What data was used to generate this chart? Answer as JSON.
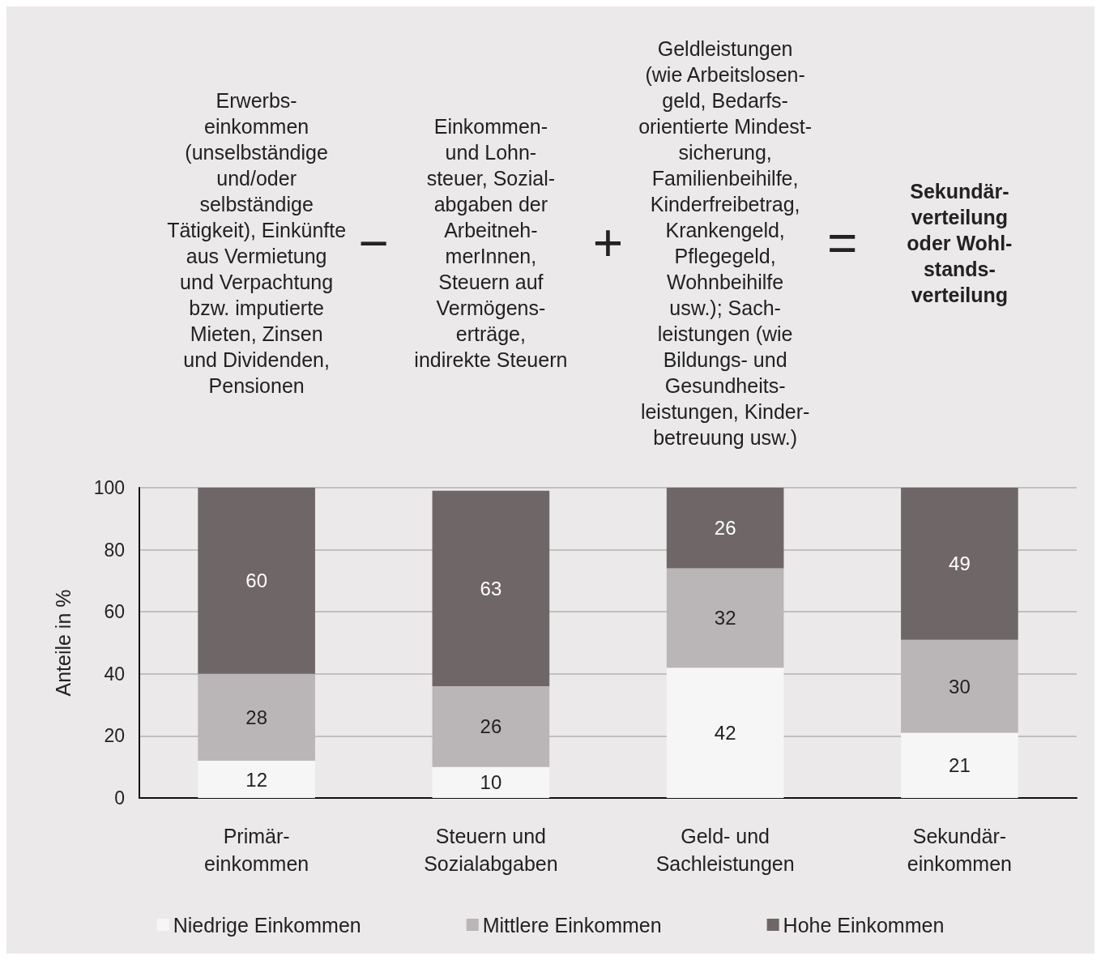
{
  "chart_data": {
    "type": "bar",
    "stacked": true,
    "ylabel": "Anteile in %",
    "categories": [
      "Primär-\neinkommen",
      "Steuern und\nSozialabgaben",
      "Geld- und\nSachleistungen",
      "Sekundär-\neinkommen"
    ],
    "series": [
      {
        "name": "Niedrige Einkommen",
        "color": "#f7f6f6",
        "values": [
          12,
          10,
          42,
          21
        ]
      },
      {
        "name": "Mittlere Einkommen",
        "color": "#bab5b7",
        "values": [
          28,
          26,
          32,
          30
        ]
      },
      {
        "name": "Hohe Einkommen",
        "color": "#6f6767",
        "values": [
          60,
          63,
          26,
          49
        ]
      }
    ],
    "ylim": [
      0,
      100
    ],
    "yticks": [
      0,
      20,
      40,
      60,
      80,
      100
    ],
    "grid": "y",
    "legend": "bottom",
    "data_labels": true,
    "annotations": [
      "Erwerbs-\neinkommen\n(unselbständige\nund/oder\nselbständige\nTätigkeit), Einkünfte\naus Vermietung\nund Verpachtung\nbzw. imputierte\nMieten, Zinsen\nund Dividenden,\nPensionen",
      "−",
      "Einkommen-\nund Lohn-\nsteuer, Sozial-\nabgaben der\nArbeitneh-\nmerInnen,\nSteuern auf\nVermögens-\nerträge,\nindirekte Steuern",
      "+",
      "Geldleistungen\n(wie Arbeitslosen-\ngeld, Bedarfs-\norientierte Mindest-\nsicherung,\nFamilienbeihilfe,\nKinderfreibetrag,\nKrankengeld,\nPflegegeld,\nWohnbeihilfe\nusw.); Sach-\nleistungen (wie\nBildungs- und\nGesundheits-\nleistungen, Kinder-\nbetreuung usw.)",
      "=",
      "Sekundär-\nverteilung\noder Wohl-\nstands-\nverteilung"
    ]
  }
}
